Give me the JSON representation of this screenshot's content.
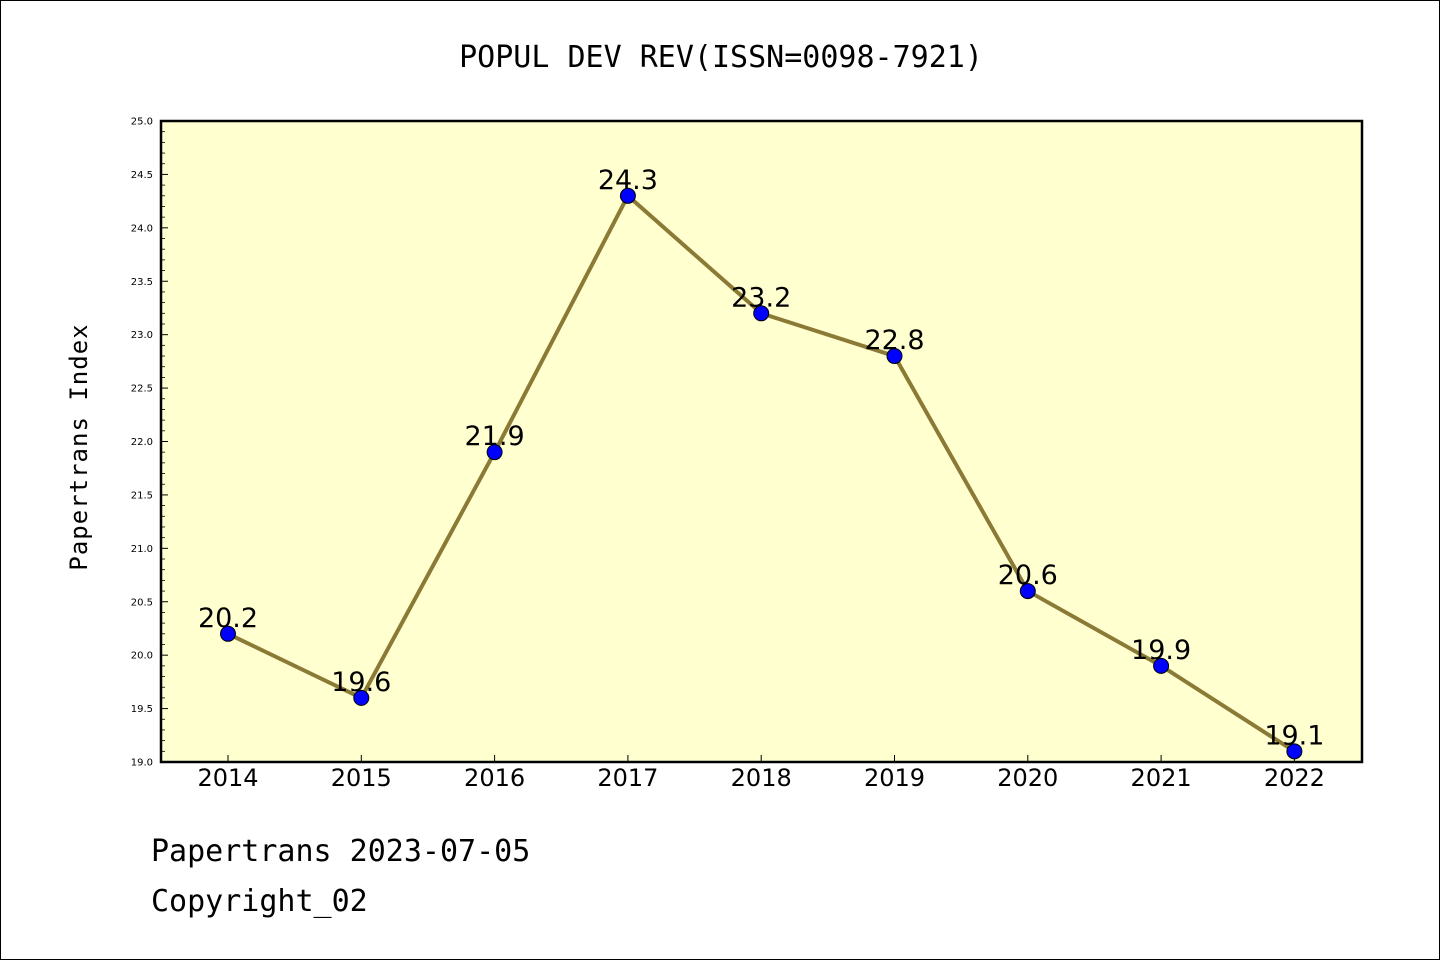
{
  "chart_data": {
    "type": "line",
    "title": "POPUL DEV REV(ISSN=0098-7921)",
    "xlabel": "",
    "ylabel": "Papertrans Index",
    "categories": [
      "2014",
      "2015",
      "2016",
      "2017",
      "2018",
      "2019",
      "2020",
      "2021",
      "2022"
    ],
    "values": [
      20.2,
      19.6,
      21.9,
      24.3,
      23.2,
      22.8,
      20.6,
      19.9,
      19.1
    ],
    "value_labels": [
      "20.2",
      "19.6",
      "21.9",
      "24.3",
      "23.2",
      "22.8",
      "20.6",
      "19.9",
      "19.1"
    ],
    "ylim": [
      19.0,
      25.0
    ],
    "yticks": [
      "19.0",
      "19.5",
      "20.0",
      "20.5",
      "21.0",
      "21.5",
      "22.0",
      "22.5",
      "23.0",
      "23.5",
      "24.0",
      "24.5",
      "25.0"
    ],
    "grid": false,
    "legend": "none",
    "colors": {
      "plot_background": "#ffffd0",
      "line": "#8b7a36",
      "marker": "#0000ff"
    }
  },
  "footer": {
    "date_line": "Papertrans 2023-07-05",
    "copyright": "Copyright_02"
  }
}
